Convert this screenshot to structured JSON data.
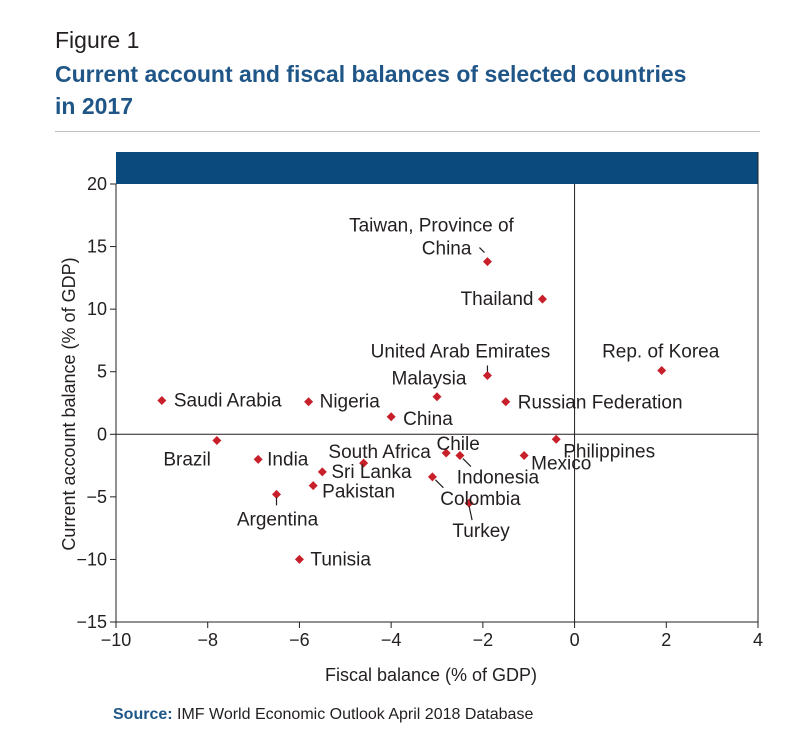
{
  "figure": {
    "label": "Figure 1",
    "title": "Current account and fiscal balances of selected countries in 2017"
  },
  "source": {
    "label": "Source:",
    "text": " IMF World Economic Outlook April 2018 Database"
  },
  "colors": {
    "title": "#1f5687",
    "banner": "#0a4a7c",
    "point": "#c8202a",
    "axis": "#231f20"
  },
  "chart_data": {
    "type": "scatter",
    "xlabel": "Fiscal balance (% of GDP)",
    "ylabel": "Current account balance (% of GDP)",
    "xlim": [
      -10,
      4
    ],
    "ylim": [
      -15,
      20
    ],
    "xticks": [
      -10,
      -8,
      -6,
      -4,
      -2,
      0,
      2,
      4
    ],
    "yticks": [
      20,
      15,
      10,
      5,
      0,
      -5,
      -10,
      -15
    ],
    "grid": false,
    "reference_lines": {
      "x": 0,
      "y": 0
    },
    "points": [
      {
        "label": "Taiwan, Province of China",
        "x": -1.9,
        "y": 13.8
      },
      {
        "label": "Thailand",
        "x": -0.7,
        "y": 10.8
      },
      {
        "label": "United Arab Emirates",
        "x": -1.9,
        "y": 4.7
      },
      {
        "label": "Rep. of Korea",
        "x": 1.9,
        "y": 5.1
      },
      {
        "label": "Malaysia",
        "x": -3.0,
        "y": 3.0
      },
      {
        "label": "Saudi Arabia",
        "x": -9.0,
        "y": 2.7
      },
      {
        "label": "Nigeria",
        "x": -5.8,
        "y": 2.6
      },
      {
        "label": "Russian Federation",
        "x": -1.5,
        "y": 2.6
      },
      {
        "label": "China",
        "x": -4.0,
        "y": 1.4
      },
      {
        "label": "Brazil",
        "x": -7.8,
        "y": -0.5
      },
      {
        "label": "Philippines",
        "x": -0.4,
        "y": -0.4
      },
      {
        "label": "India",
        "x": -6.9,
        "y": -2.0
      },
      {
        "label": "South Africa",
        "x": -4.6,
        "y": -2.3
      },
      {
        "label": "Chile",
        "x": -2.8,
        "y": -1.5
      },
      {
        "label": "Indonesia",
        "x": -2.5,
        "y": -1.7
      },
      {
        "label": "Mexico",
        "x": -1.1,
        "y": -1.7
      },
      {
        "label": "Sri Lanka",
        "x": -5.5,
        "y": -3.0
      },
      {
        "label": "Colombia",
        "x": -3.1,
        "y": -3.4
      },
      {
        "label": "Pakistan",
        "x": -5.7,
        "y": -4.1
      },
      {
        "label": "Argentina",
        "x": -6.5,
        "y": -4.8
      },
      {
        "label": "Turkey",
        "x": -2.3,
        "y": -5.5
      },
      {
        "label": "Tunisia",
        "x": -6.0,
        "y": -10.0
      }
    ]
  }
}
